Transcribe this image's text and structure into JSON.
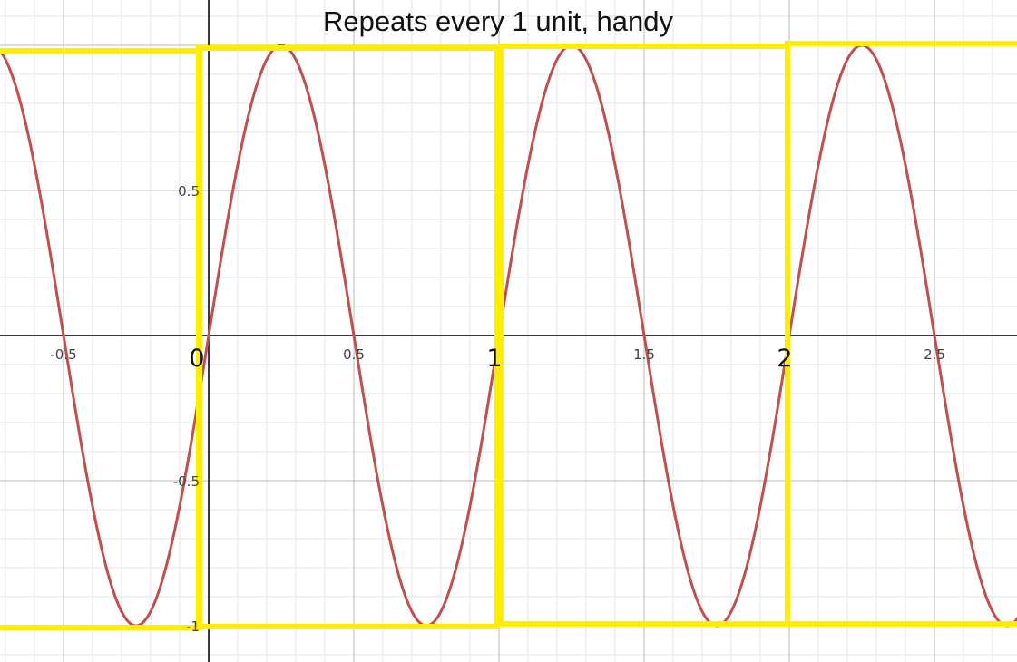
{
  "chart_data": {
    "type": "line",
    "title": "Repeats every 1 unit, handy",
    "xlabel": "",
    "ylabel": "",
    "xlim": [
      -0.72,
      2.78
    ],
    "ylim": [
      -1.1,
      1.13
    ],
    "grid": true,
    "x_ticks": [
      -0.5,
      0.5,
      1.5,
      2.5
    ],
    "x_tick_labels": [
      "-0.5",
      "0.5",
      "1.5",
      "2.5"
    ],
    "y_ticks": [
      0.5,
      -0.5,
      -1
    ],
    "y_tick_labels": [
      "0.5",
      "-0.5",
      "-1"
    ],
    "period_labels": [
      {
        "x": 0,
        "label": "0"
      },
      {
        "x": 1,
        "label": "1"
      },
      {
        "x": 2,
        "label": "2"
      }
    ],
    "series": [
      {
        "function": "sin(2πx)",
        "color": "#c0504d",
        "x": [
          -0.75,
          -0.5,
          -0.25,
          0,
          0.25,
          0.5,
          0.75,
          1,
          1.25,
          1.5,
          1.75,
          2,
          2.25,
          2.5,
          2.75
        ],
        "y": [
          1,
          0,
          -1,
          0,
          1,
          0,
          -1,
          0,
          1,
          0,
          -1,
          0,
          1,
          0,
          -1
        ]
      }
    ],
    "period_boxes": [
      {
        "x0": -1,
        "x1": 0,
        "y0": -1,
        "y1": 1
      },
      {
        "x0": 0,
        "x1": 1,
        "y0": -1,
        "y1": 1
      },
      {
        "x0": 1,
        "x1": 2,
        "y0": -1,
        "y1": 1
      },
      {
        "x0": 2,
        "x1": 3,
        "y0": -1,
        "y1": 1
      }
    ],
    "box_color": "#ffee00"
  }
}
